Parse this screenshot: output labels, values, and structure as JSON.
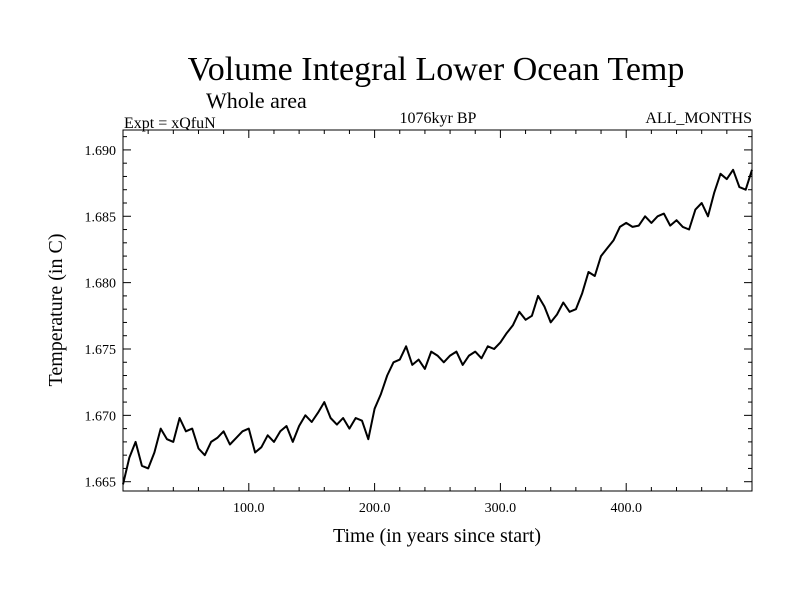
{
  "chart_data": {
    "type": "line",
    "title": "Volume Integral Lower Ocean Temp",
    "subtitle": "Whole area",
    "annotations": {
      "experiment": "Expt = xQfuN",
      "period": "1076kyr BP",
      "months": "ALL_MONTHS"
    },
    "xlabel": "Time (in years since start)",
    "ylabel": "Temperature (in C)",
    "xlim": [
      0,
      500
    ],
    "ylim": [
      1.6643,
      1.6915
    ],
    "x_ticks": [
      100,
      200,
      300,
      400
    ],
    "x_tick_labels": [
      "100.0",
      "200.0",
      "300.0",
      "400.0"
    ],
    "y_ticks": [
      1.665,
      1.67,
      1.675,
      1.68,
      1.685,
      1.69
    ],
    "y_tick_labels": [
      "1.665",
      "1.670",
      "1.675",
      "1.680",
      "1.685",
      "1.690"
    ],
    "grid": false,
    "series": [
      {
        "name": "Volume Integral Lower Ocean Temp",
        "x": [
          0,
          5,
          10,
          15,
          20,
          25,
          30,
          35,
          40,
          45,
          50,
          55,
          60,
          65,
          70,
          75,
          80,
          85,
          90,
          95,
          100,
          105,
          110,
          115,
          120,
          125,
          130,
          135,
          140,
          145,
          150,
          155,
          160,
          165,
          170,
          175,
          180,
          185,
          190,
          195,
          200,
          205,
          210,
          215,
          220,
          225,
          230,
          235,
          240,
          245,
          250,
          255,
          260,
          265,
          270,
          275,
          280,
          285,
          290,
          295,
          300,
          305,
          310,
          315,
          320,
          325,
          330,
          335,
          340,
          345,
          350,
          355,
          360,
          365,
          370,
          375,
          380,
          385,
          390,
          395,
          400,
          405,
          410,
          415,
          420,
          425,
          430,
          435,
          440,
          445,
          450,
          455,
          460,
          465,
          470,
          475,
          480,
          485,
          490,
          495,
          500
        ],
        "values": [
          1.6648,
          1.6668,
          1.668,
          1.6662,
          1.666,
          1.6672,
          1.669,
          1.6682,
          1.668,
          1.6698,
          1.6688,
          1.669,
          1.6675,
          1.667,
          1.668,
          1.6683,
          1.6688,
          1.6678,
          1.6683,
          1.6688,
          1.669,
          1.6672,
          1.6676,
          1.6685,
          1.668,
          1.6688,
          1.6692,
          1.668,
          1.6692,
          1.67,
          1.6695,
          1.6702,
          1.671,
          1.6698,
          1.6693,
          1.6698,
          1.669,
          1.6698,
          1.6696,
          1.6682,
          1.6705,
          1.6716,
          1.673,
          1.674,
          1.6742,
          1.6752,
          1.6738,
          1.6742,
          1.6735,
          1.6748,
          1.6745,
          1.674,
          1.6745,
          1.6748,
          1.6738,
          1.6745,
          1.6748,
          1.6743,
          1.6752,
          1.675,
          1.6755,
          1.6762,
          1.6768,
          1.6778,
          1.6772,
          1.6775,
          1.679,
          1.6782,
          1.677,
          1.6776,
          1.6785,
          1.6778,
          1.678,
          1.6792,
          1.6808,
          1.6805,
          1.682,
          1.6826,
          1.6832,
          1.6842,
          1.6845,
          1.6842,
          1.6843,
          1.685,
          1.6845,
          1.685,
          1.6852,
          1.6843,
          1.6847,
          1.6842,
          1.684,
          1.6855,
          1.686,
          1.685,
          1.6868,
          1.6882,
          1.6878,
          1.6885,
          1.6872,
          1.687,
          1.6885
        ]
      }
    ]
  },
  "colors": {
    "line": "#000000",
    "axes": "#000000",
    "background": "#ffffff"
  }
}
